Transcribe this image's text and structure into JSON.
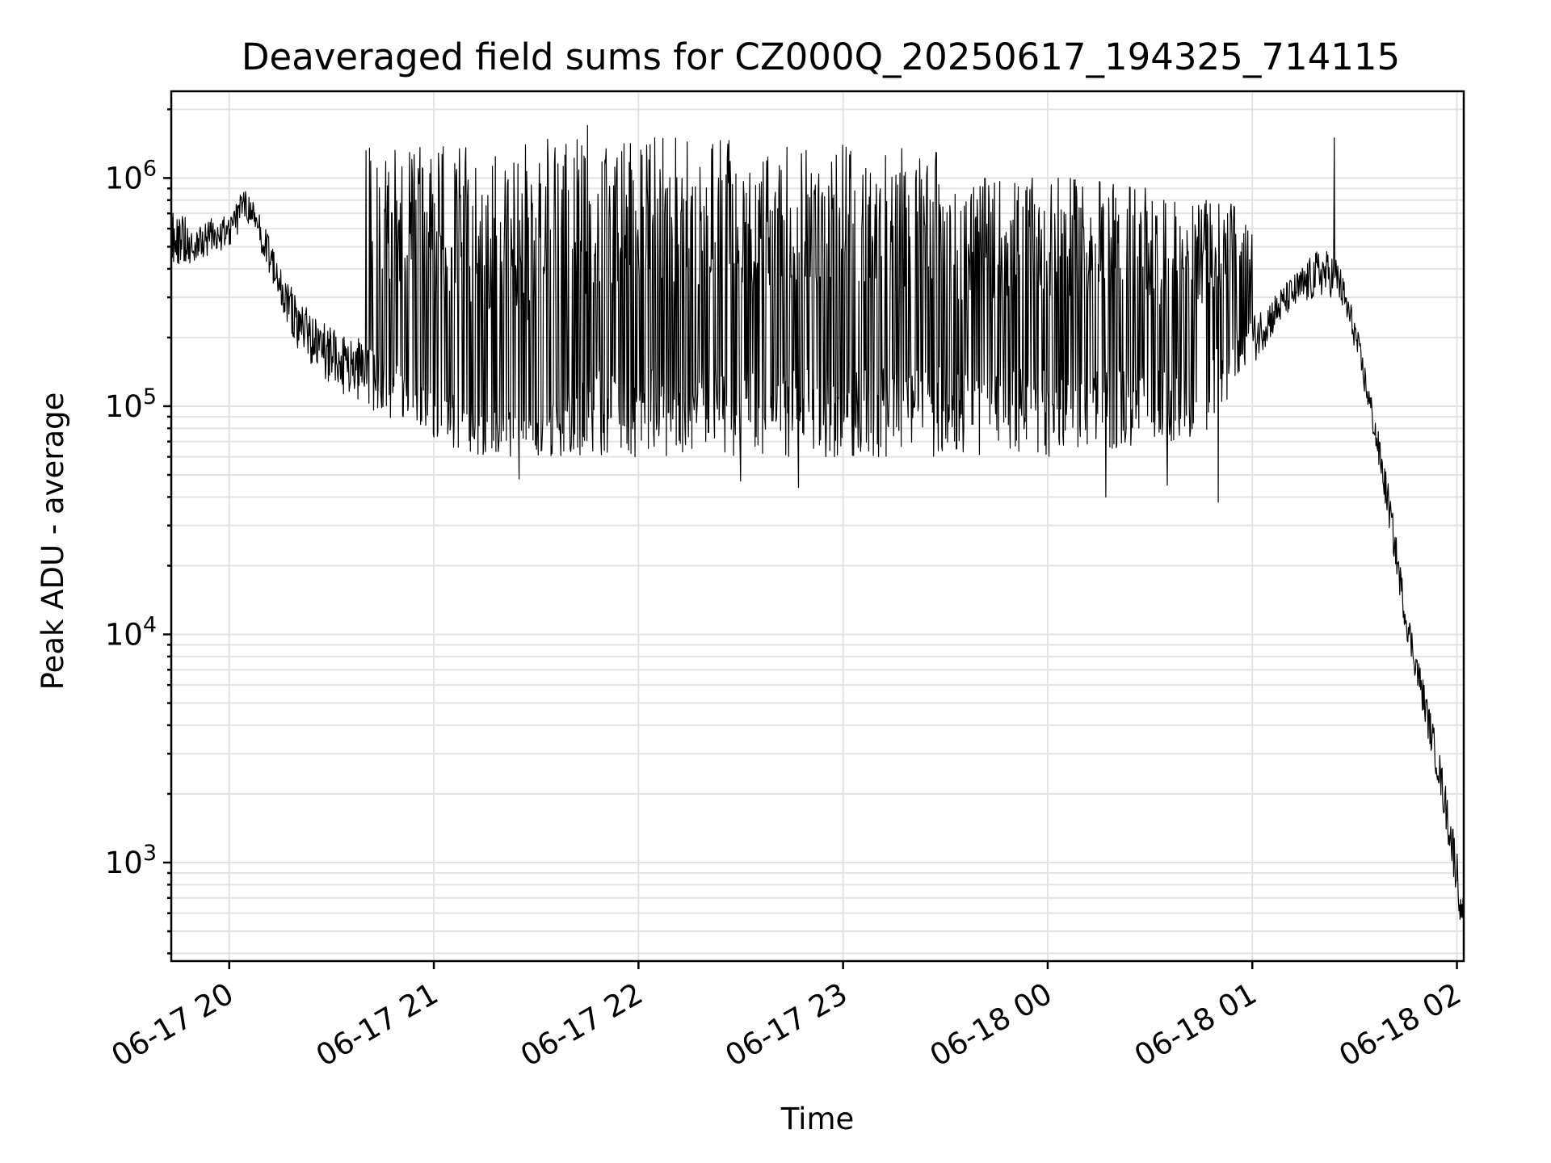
{
  "chart_data": {
    "type": "line",
    "title": "Deaveraged field sums for CZ000Q_20250617_194325_714115",
    "xlabel": "Time",
    "ylabel": "Peak ADU - average",
    "yscale": "log",
    "grid": true,
    "xlim": [
      "2025-06-17 19:43",
      "2025-06-18 02:02"
    ],
    "ylim": [
      370,
      2400000
    ],
    "xticks": [
      {
        "t": "2025-06-17 20:00",
        "label": "06-17 20"
      },
      {
        "t": "2025-06-17 21:00",
        "label": "06-17 21"
      },
      {
        "t": "2025-06-17 22:00",
        "label": "06-17 22"
      },
      {
        "t": "2025-06-17 23:00",
        "label": "06-17 23"
      },
      {
        "t": "2025-06-18 00:00",
        "label": "06-18 00"
      },
      {
        "t": "2025-06-18 01:00",
        "label": "06-18 01"
      },
      {
        "t": "2025-06-18 02:00",
        "label": "06-18 02"
      }
    ],
    "yticks": [
      {
        "value": 1000,
        "base": "10",
        "exp": "3"
      },
      {
        "value": 10000,
        "base": "10",
        "exp": "4"
      },
      {
        "value": 100000,
        "base": "10",
        "exp": "5"
      },
      {
        "value": 1000000,
        "base": "10",
        "exp": "6"
      }
    ],
    "series": [
      {
        "color": "#000000",
        "envelope": [
          {
            "t": "2025-06-17 19:43",
            "low": 420000,
            "high": 800000
          },
          {
            "t": "2025-06-17 19:50",
            "low": 420000,
            "high": 600000
          },
          {
            "t": "2025-06-17 20:00",
            "low": 500000,
            "high": 750000
          },
          {
            "t": "2025-06-17 20:05",
            "low": 650000,
            "high": 900000
          },
          {
            "t": "2025-06-17 20:10",
            "low": 450000,
            "high": 650000
          },
          {
            "t": "2025-06-17 20:15",
            "low": 280000,
            "high": 400000
          },
          {
            "t": "2025-06-17 20:20",
            "low": 180000,
            "high": 300000
          },
          {
            "t": "2025-06-17 20:30",
            "low": 120000,
            "high": 220000
          },
          {
            "t": "2025-06-17 20:40",
            "low": 100000,
            "high": 200000
          },
          {
            "t": "2025-06-17 20:50",
            "low": 80000,
            "high": 150000
          },
          {
            "t": "2025-06-17 21:00",
            "low": 70000,
            "high": 120000
          },
          {
            "t": "2025-06-17 21:15",
            "low": 60000,
            "high": 100000
          },
          {
            "t": "2025-06-17 21:30",
            "low": 60000,
            "high": 90000
          },
          {
            "t": "2025-06-17 21:50",
            "low": 60000,
            "high": 150000
          },
          {
            "t": "2025-06-17 22:00",
            "low": 60000,
            "high": 150000
          },
          {
            "t": "2025-06-17 23:00",
            "low": 60000,
            "high": 150000
          },
          {
            "t": "2025-06-18 00:00",
            "low": 60000,
            "high": 150000
          },
          {
            "t": "2025-06-18 00:45",
            "low": 70000,
            "high": 160000
          },
          {
            "t": "2025-06-18 01:00",
            "low": 150000,
            "high": 250000
          },
          {
            "t": "2025-06-18 01:10",
            "low": 250000,
            "high": 350000
          },
          {
            "t": "2025-06-18 01:20",
            "low": 300000,
            "high": 500000
          },
          {
            "t": "2025-06-18 01:25",
            "low": 300000,
            "high": 450000
          },
          {
            "t": "2025-06-18 01:30",
            "low": 180000,
            "high": 250000
          },
          {
            "t": "2025-06-18 01:35",
            "low": 80000,
            "high": 110000
          },
          {
            "t": "2025-06-18 01:40",
            "low": 30000,
            "high": 45000
          },
          {
            "t": "2025-06-18 01:45",
            "low": 10000,
            "high": 14000
          },
          {
            "t": "2025-06-18 01:50",
            "low": 4500,
            "high": 6500
          },
          {
            "t": "2025-06-18 01:55",
            "low": 2000,
            "high": 3000
          },
          {
            "t": "2025-06-18 02:00",
            "low": 700,
            "high": 1200
          },
          {
            "t": "2025-06-18 02:01",
            "low": 550,
            "high": 700
          }
        ],
        "spike_peaks": [
          {
            "from": "2025-06-17 20:40",
            "to": "2025-06-17 21:00",
            "high": 1400000
          },
          {
            "from": "2025-06-17 21:00",
            "to": "2025-06-17 21:30",
            "high": 1400000
          },
          {
            "from": "2025-06-17 21:30",
            "to": "2025-06-17 22:30",
            "high": 1500000
          },
          {
            "from": "2025-06-17 22:30",
            "to": "2025-06-17 23:30",
            "high": 1400000
          },
          {
            "from": "2025-06-17 23:30",
            "to": "2025-06-18 00:30",
            "high": 1000000
          },
          {
            "from": "2025-06-18 00:30",
            "to": "2025-06-18 01:00",
            "high": 800000
          }
        ],
        "spike_dips": [
          {
            "t": "2025-06-17 21:05",
            "value": 85000
          },
          {
            "t": "2025-06-17 21:25",
            "value": 48000
          },
          {
            "t": "2025-06-17 22:30",
            "value": 47000
          },
          {
            "t": "2025-06-17 22:47",
            "value": 44000
          },
          {
            "t": "2025-06-18 00:17",
            "value": 40000
          },
          {
            "t": "2025-06-18 00:35",
            "value": 45000
          },
          {
            "t": "2025-06-18 00:50",
            "value": 38000
          }
        ],
        "notable_points": [
          {
            "t": "2025-06-17 21:45",
            "value": 1700000
          },
          {
            "t": "2025-06-18 01:24",
            "value": 1500000
          },
          {
            "t": "2025-06-18 02:02",
            "value": 550
          }
        ]
      }
    ]
  }
}
